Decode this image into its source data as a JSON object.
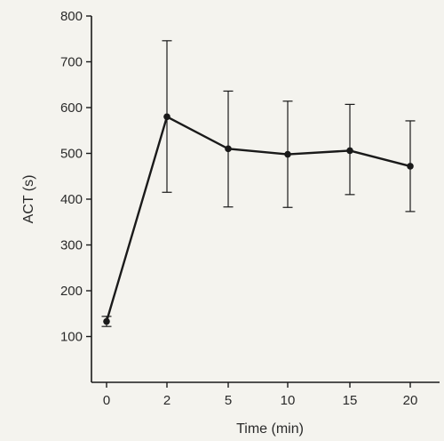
{
  "chart_data": {
    "type": "line",
    "title": "",
    "xlabel": "Time (min)",
    "ylabel": "ACT (s)",
    "categories": [
      "0",
      "2",
      "5",
      "10",
      "15",
      "20"
    ],
    "ylim": [
      0,
      800
    ],
    "yticks": [
      100,
      200,
      300,
      400,
      500,
      600,
      700,
      800
    ],
    "series": [
      {
        "values": [
          133,
          580,
          510,
          498,
          506,
          472
        ],
        "err_low": [
          122,
          415,
          383,
          382,
          410,
          373
        ],
        "err_high": [
          144,
          746,
          636,
          614,
          607,
          571
        ]
      }
    ],
    "grid": false,
    "colors": {
      "line": "#1a1a1a",
      "axis": "#1a1a1a",
      "background": "#f4f3ee"
    }
  }
}
